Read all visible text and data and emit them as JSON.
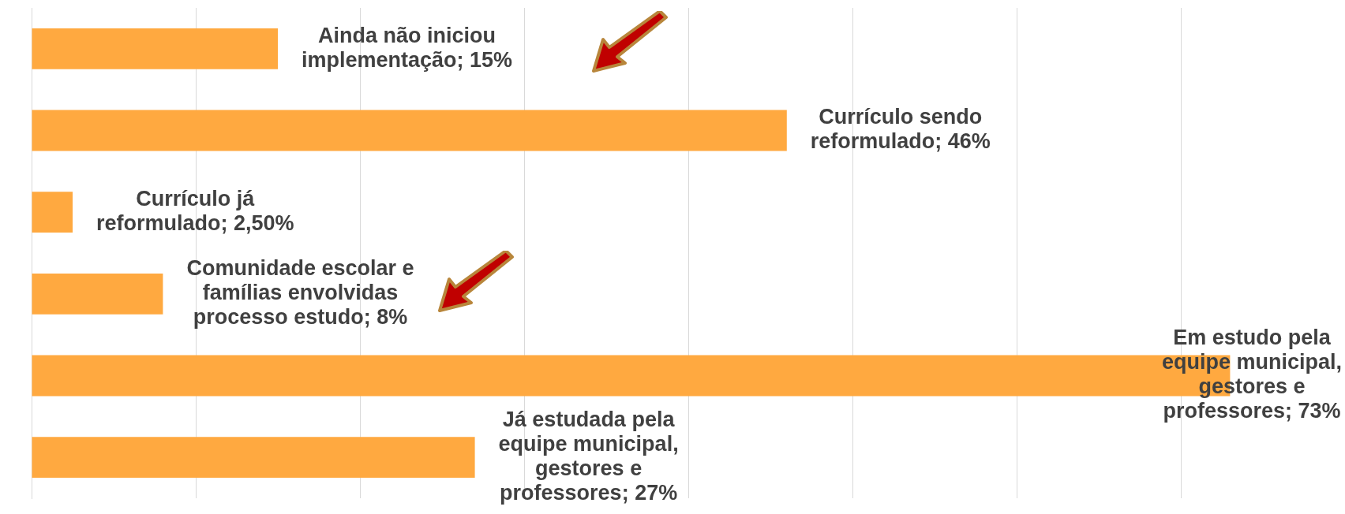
{
  "chart_data": {
    "type": "bar",
    "orientation": "horizontal",
    "categories": [
      null,
      null,
      null,
      null,
      null,
      null
    ],
    "values": [
      15,
      46,
      2.5,
      8,
      73,
      27
    ],
    "value_labels": [
      "Ainda não iniciou implementação; 15%",
      "Currículo sendo reformulado; 46%",
      "Currículo já reformulado; 2,50%",
      "Comunidade escolar e famílias envolvidas processo estudo; 8%",
      "Em estudo pela equipe municipal, gestores e professores; 73%",
      "Já estudada pela equipe municipal, gestores e professores; 27%"
    ],
    "color": "#ffa940",
    "grid": "x",
    "tick_labels": false,
    "legend": false
  }
}
